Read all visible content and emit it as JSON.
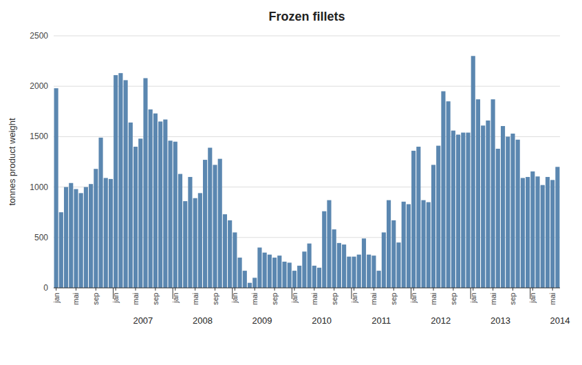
{
  "chart_data": {
    "type": "bar",
    "title": "Frozen fillets",
    "y_label": "tonnes product weight",
    "categories": [
      "jan",
      null,
      null,
      null,
      "mai",
      null,
      null,
      null,
      "sep",
      null,
      null,
      null,
      "jan",
      null,
      null,
      null,
      "mai",
      null,
      null,
      null,
      "sep",
      null,
      null,
      null,
      "jan",
      null,
      null,
      null,
      "mai",
      null,
      null,
      null,
      "sep",
      null,
      null,
      null,
      "jan",
      null,
      null,
      null,
      "mai",
      null,
      null,
      null,
      "sep",
      null,
      null,
      null,
      "jan",
      null,
      null,
      null,
      "mai",
      null,
      null,
      null,
      "sep",
      null,
      null,
      null,
      "jan",
      null,
      null,
      null,
      "mai",
      null,
      null,
      null,
      "sep",
      null,
      null,
      null,
      "jan",
      null,
      null,
      null,
      "mai",
      null,
      null,
      null,
      "sep",
      null,
      null,
      null,
      "jan",
      null,
      null,
      null,
      "mai",
      null,
      null,
      null,
      "sep",
      null,
      null,
      null,
      "jan",
      null,
      null,
      null,
      "mai",
      null
    ],
    "values": [
      1980,
      750,
      1000,
      1040,
      980,
      940,
      1000,
      1030,
      1180,
      1490,
      1090,
      1080,
      2110,
      2130,
      2060,
      1640,
      1400,
      1480,
      2080,
      1770,
      1730,
      1650,
      1670,
      1460,
      1450,
      1130,
      860,
      1100,
      890,
      940,
      1270,
      1390,
      1220,
      1280,
      730,
      670,
      550,
      300,
      170,
      50,
      100,
      400,
      350,
      330,
      300,
      320,
      260,
      250,
      170,
      220,
      360,
      440,
      220,
      200,
      760,
      870,
      580,
      445,
      430,
      310,
      310,
      330,
      490,
      330,
      320,
      170,
      550,
      870,
      670,
      450,
      855,
      830,
      1360,
      1400,
      870,
      850,
      1220,
      1410,
      1950,
      1850,
      1560,
      1520,
      1540,
      1540,
      2300,
      1870,
      1610,
      1660,
      1870,
      1380,
      1605,
      1500,
      1530,
      1470,
      1090,
      1100,
      1155,
      1105,
      1020,
      1100,
      1070,
      1200
    ],
    "color": "#5b87b0",
    "ylim": [
      0,
      2500
    ],
    "yticks": [
      0,
      500,
      1000,
      1500,
      2000,
      2500
    ],
    "grid": true,
    "annotations": [
      {
        "text": "2007",
        "x": 17.5
      },
      {
        "text": "2008",
        "x": 29.5
      },
      {
        "text": "2009",
        "x": 41.5
      },
      {
        "text": "2010",
        "x": 53.5
      },
      {
        "text": "2011",
        "x": 65.5
      },
      {
        "text": "2012",
        "x": 77.5
      },
      {
        "text": "2013",
        "x": 89.5
      },
      {
        "text": "2014",
        "x": 101.5
      }
    ]
  }
}
